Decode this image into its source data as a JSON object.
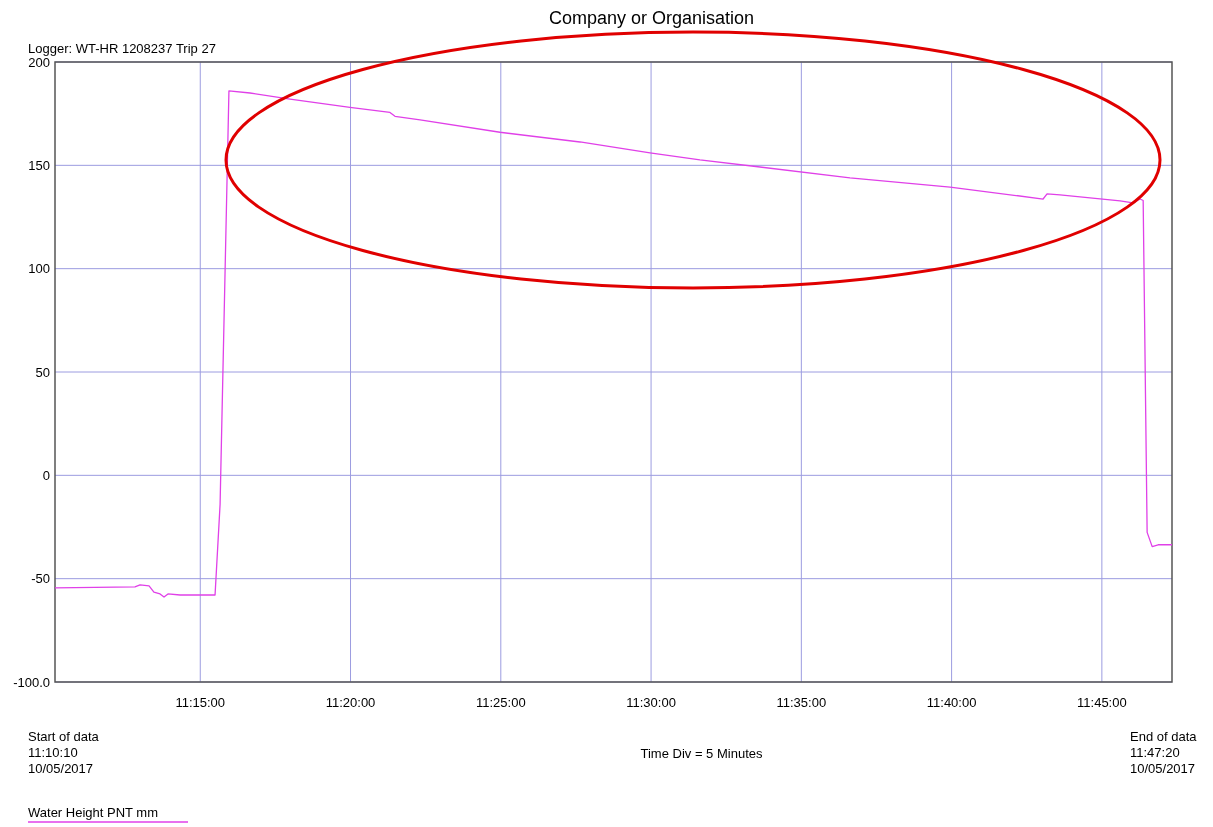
{
  "chart_data": {
    "type": "line",
    "title": "Company or Organisation",
    "subtitle": "Logger: WT-HR 1208237 Trip 27",
    "annotations": [
      "Start of data\n11:10:10\n10/05/2017",
      "Time Div = 5 Minutes",
      "End of data\n11:47:20\n10/05/2017"
    ],
    "xlim": [
      11.169444,
      11.788889
    ],
    "xticks": [
      {
        "value": 11.25,
        "label": "11:15:00"
      },
      {
        "value": 11.333333,
        "label": "11:20:00"
      },
      {
        "value": 11.416667,
        "label": "11:25:00"
      },
      {
        "value": 11.5,
        "label": "11:30:00"
      },
      {
        "value": 11.583333,
        "label": "11:35:00"
      },
      {
        "value": 11.666667,
        "label": "11:40:00"
      },
      {
        "value": 11.75,
        "label": "11:45:00"
      }
    ],
    "ylim": [
      -100,
      200
    ],
    "yticks": [
      {
        "value": -100,
        "label": "-100.0"
      },
      -50,
      0,
      50,
      100,
      150,
      200
    ],
    "grid": true,
    "legend": "bottom",
    "marker": "none",
    "series": [
      {
        "name": "Water Height PNT mm",
        "color": "#e040e8",
        "x": [
          11.16945,
          11.2138,
          11.2166,
          11.2216,
          11.2243,
          11.2277,
          11.2299,
          11.2321,
          11.2388,
          11.2582,
          11.261,
          11.2659,
          11.2776,
          11.2998,
          11.333,
          11.3552,
          11.358,
          11.3719,
          11.4162,
          11.4606,
          11.4994,
          11.5271,
          11.5604,
          11.6103,
          11.6658,
          11.7174,
          11.7196,
          11.7268,
          11.7601,
          11.7673,
          11.7712,
          11.7729,
          11.7751,
          11.7779,
          11.7812,
          11.78888
        ],
        "values": [
          -54.5,
          -54,
          -53,
          -53.5,
          -56.5,
          -57.4,
          -58.9,
          -57.4,
          -57.9,
          -57.9,
          -14,
          186,
          185,
          182,
          178,
          175.6,
          173.7,
          172,
          166,
          161.3,
          156,
          152.6,
          149.2,
          143.9,
          139.5,
          133.7,
          136.2,
          135.7,
          132.8,
          131.8,
          133.7,
          133,
          -27.6,
          -34.5,
          -33.6,
          -33.6
        ]
      }
    ]
  }
}
